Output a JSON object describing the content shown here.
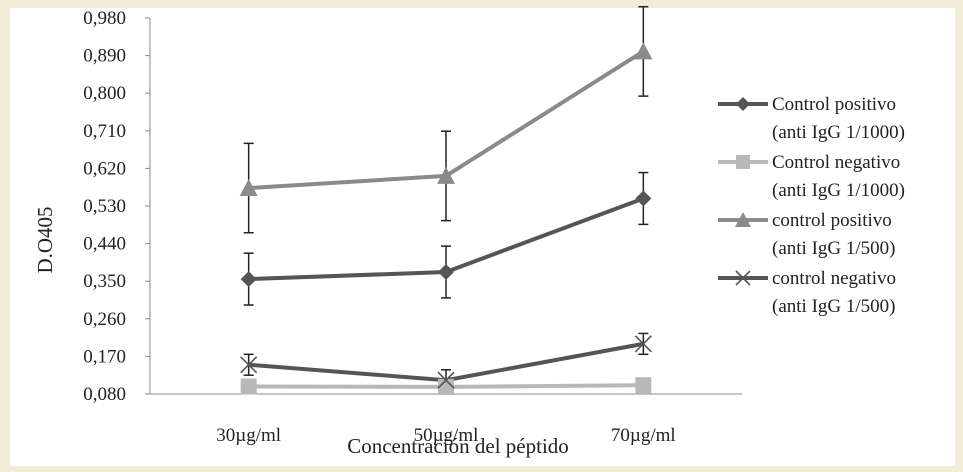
{
  "chart_data": {
    "type": "line",
    "title": "",
    "xlabel": "Concentración del péptido",
    "ylabel": "D.O405",
    "categories": [
      "30µg/ml",
      "50µg/ml",
      "70µg/ml"
    ],
    "ylim": [
      0.08,
      0.98
    ],
    "yticks": [
      "0,080",
      "0,170",
      "0,260",
      "0,350",
      "0,440",
      "0,530",
      "0,620",
      "0,710",
      "0,800",
      "0,890",
      "0,980"
    ],
    "grid": false,
    "legend_position": "right",
    "series": [
      {
        "name_line1": "Control positivo",
        "name_line2": "(anti IgG 1/1000)",
        "marker": "diamond",
        "color": "#555555",
        "values": [
          0.355,
          0.372,
          0.548
        ],
        "error": [
          0.062,
          0.062,
          0.062
        ]
      },
      {
        "name_line1": "Control negativo",
        "name_line2": "(anti IgG 1/1000)",
        "marker": "square",
        "color": "#b8b8b8",
        "values": [
          0.098,
          0.097,
          0.101
        ],
        "error": null
      },
      {
        "name_line1": "control positivo",
        "name_line2": "(anti IgG 1/500)",
        "marker": "triangle",
        "color": "#8a8a8a",
        "values": [
          0.573,
          0.602,
          0.9
        ],
        "error": [
          0.107,
          0.107,
          0.107
        ]
      },
      {
        "name_line1": "control negativo",
        "name_line2": "(anti IgG 1/500)",
        "marker": "x",
        "color": "#555555",
        "values": [
          0.15,
          0.113,
          0.2
        ],
        "error": [
          0.025,
          0.025,
          0.025
        ]
      }
    ]
  }
}
